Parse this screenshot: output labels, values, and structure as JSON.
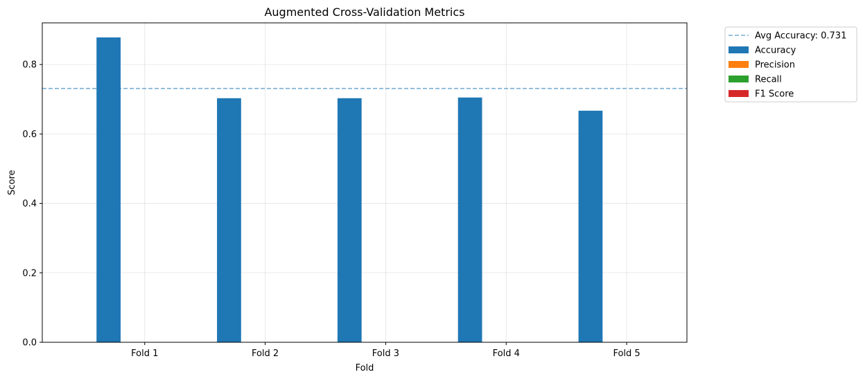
{
  "chart_data": {
    "type": "bar",
    "title": "Augmented Cross-Validation Metrics",
    "xlabel": "Fold",
    "ylabel": "Score",
    "categories": [
      "Fold 1",
      "Fold 2",
      "Fold 3",
      "Fold 4",
      "Fold 5"
    ],
    "ylim": [
      0,
      0.92
    ],
    "yticks": [
      0.0,
      0.2,
      0.4,
      0.6,
      0.8
    ],
    "ytick_labels": [
      "0.0",
      "0.2",
      "0.4",
      "0.6",
      "0.8"
    ],
    "grid": true,
    "legend_placement": "outside-top-right",
    "series": [
      {
        "name": "Accuracy",
        "color": "#1f77b4",
        "values": [
          0.878,
          0.703,
          0.703,
          0.705,
          0.667
        ]
      },
      {
        "name": "Precision",
        "color": "#ff7f0e",
        "values": [
          0,
          0,
          0,
          0,
          0
        ]
      },
      {
        "name": "Recall",
        "color": "#2ca02c",
        "values": [
          0,
          0,
          0,
          0,
          0
        ]
      },
      {
        "name": "F1 Score",
        "color": "#d62728",
        "values": [
          0,
          0,
          0,
          0,
          0
        ]
      }
    ],
    "reference_line": {
      "label": "Avg Accuracy: 0.731",
      "value": 0.731,
      "color": "#1f77b4",
      "style": "dashed"
    }
  }
}
